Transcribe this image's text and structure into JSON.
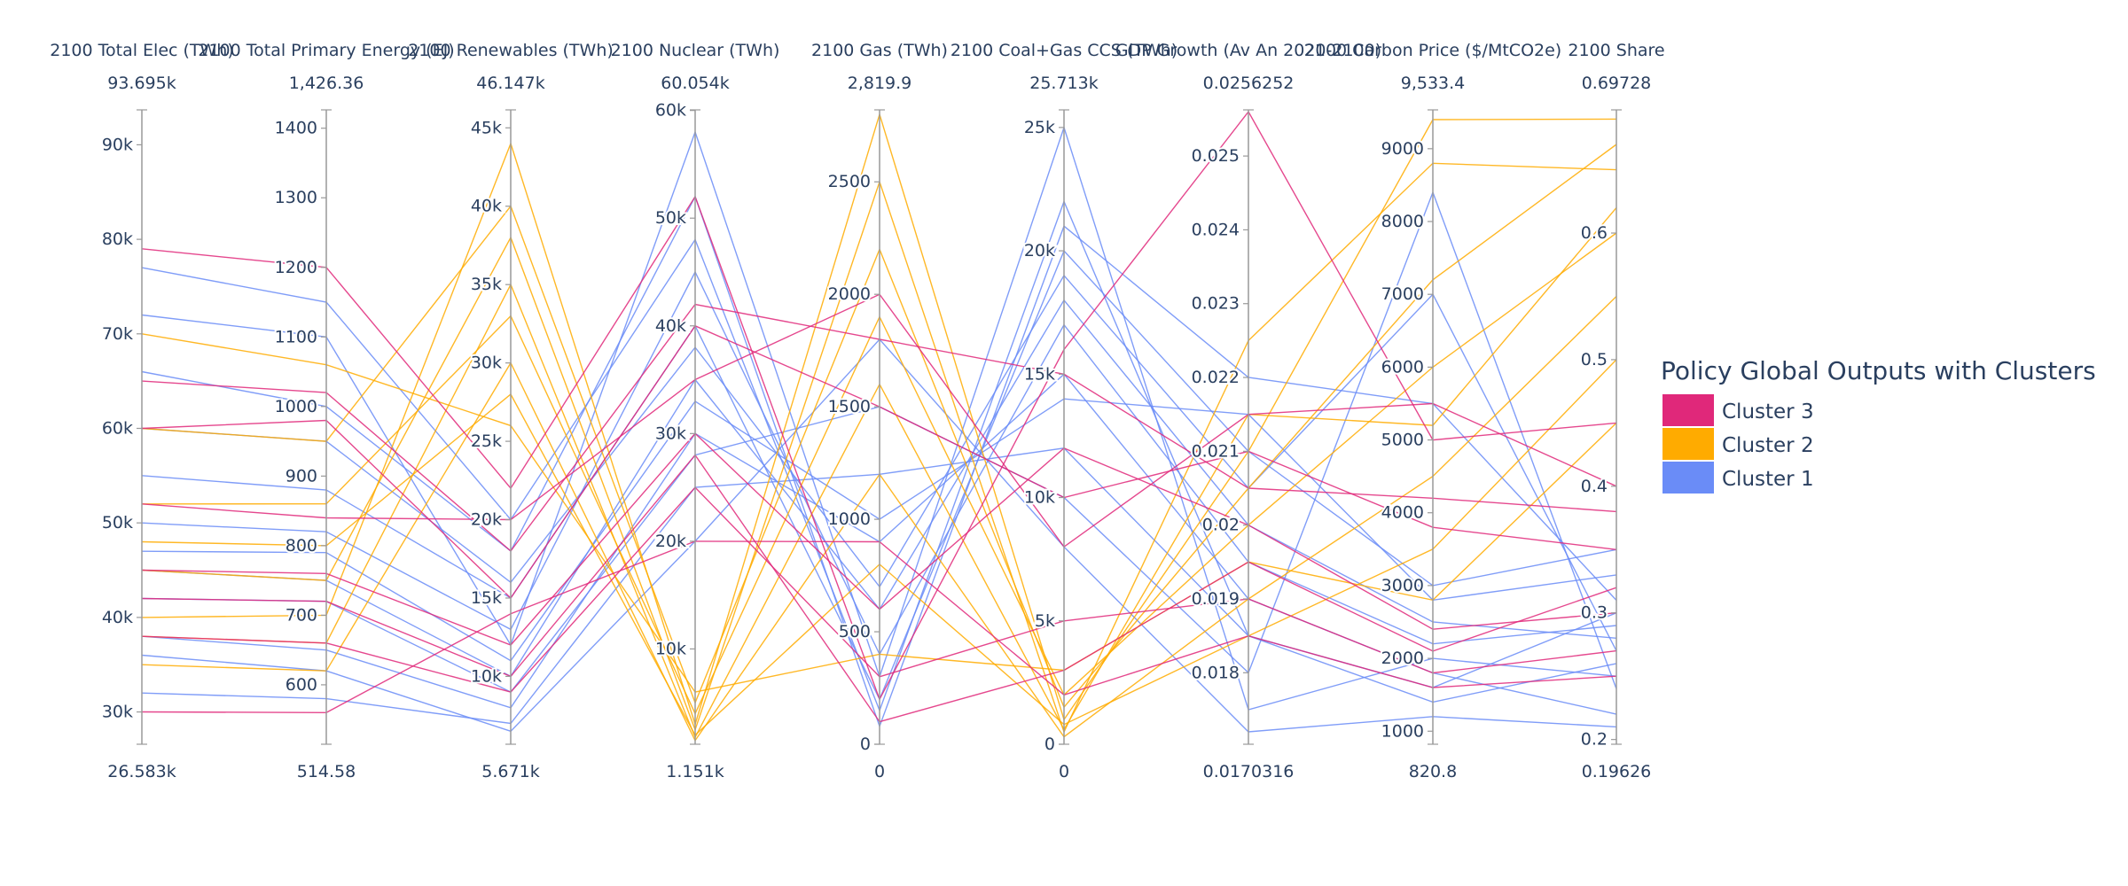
{
  "chart_data": {
    "type": "parallel_coordinates",
    "legend": {
      "title": "Policy Global Outputs with Clusters",
      "placement": "right",
      "entries": [
        {
          "name": "Cluster 3",
          "color": "#e0287a"
        },
        {
          "name": "Cluster 2",
          "color": "#ffab00"
        },
        {
          "name": "Cluster 1",
          "color": "#6a8cf7"
        }
      ]
    },
    "dimensions": [
      {
        "label": "2100 Total Elec (TWh)",
        "min_label": "26.583k",
        "max_label": "93.695k",
        "range": [
          26583,
          93695
        ],
        "ticks": [
          {
            "v": 30000,
            "t": "30k"
          },
          {
            "v": 40000,
            "t": "40k"
          },
          {
            "v": 50000,
            "t": "50k"
          },
          {
            "v": 60000,
            "t": "60k"
          },
          {
            "v": 70000,
            "t": "70k"
          },
          {
            "v": 80000,
            "t": "80k"
          },
          {
            "v": 90000,
            "t": "90k"
          }
        ]
      },
      {
        "label": "2100 Total Primary Energy (EJ)",
        "min_label": "514.58",
        "max_label": "1,426.36",
        "range": [
          514.58,
          1426.36
        ],
        "ticks": [
          {
            "v": 600,
            "t": "600"
          },
          {
            "v": 700,
            "t": "700"
          },
          {
            "v": 800,
            "t": "800"
          },
          {
            "v": 900,
            "t": "900"
          },
          {
            "v": 1000,
            "t": "1000"
          },
          {
            "v": 1100,
            "t": "1100"
          },
          {
            "v": 1200,
            "t": "1200"
          },
          {
            "v": 1300,
            "t": "1300"
          },
          {
            "v": 1400,
            "t": "1400"
          }
        ]
      },
      {
        "label": "2100 Renewables (TWh)",
        "min_label": "5.671k",
        "max_label": "46.147k",
        "range": [
          5671,
          46147
        ],
        "ticks": [
          {
            "v": 10000,
            "t": "10k"
          },
          {
            "v": 15000,
            "t": "15k"
          },
          {
            "v": 20000,
            "t": "20k"
          },
          {
            "v": 25000,
            "t": "25k"
          },
          {
            "v": 30000,
            "t": "30k"
          },
          {
            "v": 35000,
            "t": "35k"
          },
          {
            "v": 40000,
            "t": "40k"
          },
          {
            "v": 45000,
            "t": "45k"
          }
        ]
      },
      {
        "label": "2100 Nuclear (TWh)",
        "min_label": "1.151k",
        "max_label": "60.054k",
        "range": [
          1151,
          60054
        ],
        "ticks": [
          {
            "v": 10000,
            "t": "10k"
          },
          {
            "v": 20000,
            "t": "20k"
          },
          {
            "v": 30000,
            "t": "30k"
          },
          {
            "v": 40000,
            "t": "40k"
          },
          {
            "v": 50000,
            "t": "50k"
          },
          {
            "v": 60000,
            "t": "60k"
          }
        ]
      },
      {
        "label": "2100 Gas (TWh)",
        "min_label": "0",
        "max_label": "2,819.9",
        "range": [
          0,
          2819.9
        ],
        "ticks": [
          {
            "v": 0,
            "t": "0"
          },
          {
            "v": 500,
            "t": "500"
          },
          {
            "v": 1000,
            "t": "1000"
          },
          {
            "v": 1500,
            "t": "1500"
          },
          {
            "v": 2000,
            "t": "2000"
          },
          {
            "v": 2500,
            "t": "2500"
          }
        ]
      },
      {
        "label": "2100 Coal+Gas CCS (TWh)",
        "min_label": "0",
        "max_label": "25.713k",
        "range": [
          0,
          25713
        ],
        "ticks": [
          {
            "v": 0,
            "t": "0"
          },
          {
            "v": 5000,
            "t": "5k"
          },
          {
            "v": 10000,
            "t": "10k"
          },
          {
            "v": 15000,
            "t": "15k"
          },
          {
            "v": 20000,
            "t": "20k"
          },
          {
            "v": 25000,
            "t": "25k"
          }
        ]
      },
      {
        "label": "GDP Growth (Av An 2020-2100)",
        "min_label": "0.0170316",
        "max_label": "0.0256252",
        "range": [
          0.0170316,
          0.0256252
        ],
        "ticks": [
          {
            "v": 0.018,
            "t": "0.018"
          },
          {
            "v": 0.019,
            "t": "0.019"
          },
          {
            "v": 0.02,
            "t": "0.02"
          },
          {
            "v": 0.021,
            "t": "0.021"
          },
          {
            "v": 0.022,
            "t": "0.022"
          },
          {
            "v": 0.023,
            "t": "0.023"
          },
          {
            "v": 0.024,
            "t": "0.024"
          },
          {
            "v": 0.025,
            "t": "0.025"
          }
        ]
      },
      {
        "label": "2100 Carbon Price ($/MtCO2e)",
        "min_label": "820.8",
        "max_label": "9,533.4",
        "range": [
          820.8,
          9533.4
        ],
        "ticks": [
          {
            "v": 1000,
            "t": "1000"
          },
          {
            "v": 2000,
            "t": "2000"
          },
          {
            "v": 3000,
            "t": "3000"
          },
          {
            "v": 4000,
            "t": "4000"
          },
          {
            "v": 5000,
            "t": "5000"
          },
          {
            "v": 6000,
            "t": "6000"
          },
          {
            "v": 7000,
            "t": "7000"
          },
          {
            "v": 8000,
            "t": "8000"
          },
          {
            "v": 9000,
            "t": "9000"
          }
        ]
      },
      {
        "label": "2100 Share",
        "min_label": "0.19626",
        "max_label": "0.69728",
        "range": [
          0.19626,
          0.69728
        ],
        "ticks": [
          {
            "v": 0.2,
            "t": "0.2"
          },
          {
            "v": 0.3,
            "t": "0.3"
          },
          {
            "v": 0.4,
            "t": "0.4"
          },
          {
            "v": 0.5,
            "t": "0.5"
          },
          {
            "v": 0.6,
            "t": "0.6"
          }
        ]
      }
    ],
    "series": [
      {
        "cluster": "Cluster 1",
        "color": "#6a8cf7",
        "lines": [
          [
            72000,
            1100,
            12000,
            58000,
            300,
            25000,
            0.0175,
            2000,
            0.25
          ],
          [
            77000,
            1150,
            20000,
            48000,
            150,
            22000,
            0.0185,
            1600,
            0.3
          ],
          [
            45000,
            750,
            10000,
            35000,
            600,
            18000,
            0.02,
            2500,
            0.28
          ],
          [
            38000,
            650,
            8000,
            30000,
            900,
            15000,
            0.019,
            1800,
            0.22
          ],
          [
            55000,
            880,
            15000,
            40000,
            200,
            20000,
            0.021,
            3000,
            0.35
          ],
          [
            32000,
            580,
            7000,
            25000,
            1200,
            12000,
            0.0185,
            1400,
            0.26
          ],
          [
            66000,
            1000,
            18000,
            52000,
            80,
            21000,
            0.022,
            5500,
            0.31
          ],
          [
            42000,
            720,
            9000,
            28000,
            1500,
            10000,
            0.018,
            8400,
            0.24
          ],
          [
            50000,
            820,
            13000,
            45000,
            400,
            17000,
            0.0195,
            2200,
            0.29
          ],
          [
            36000,
            620,
            6500,
            20000,
            1800,
            8000,
            0.0172,
            1200,
            0.21
          ],
          [
            60000,
            950,
            16000,
            38000,
            700,
            19000,
            0.0205,
            7000,
            0.27
          ],
          [
            47000,
            790,
            11000,
            33000,
            1000,
            14000,
            0.0215,
            2800,
            0.33
          ]
        ]
      },
      {
        "cluster": "Cluster 2",
        "color": "#ffab00",
        "lines": [
          [
            40000,
            700,
            44000,
            3000,
            2800,
            1000,
            0.021,
            9400,
            0.69
          ],
          [
            45000,
            750,
            38000,
            2500,
            2500,
            500,
            0.0225,
            8800,
            0.65
          ],
          [
            52000,
            860,
            33000,
            4000,
            1900,
            2000,
            0.02,
            6000,
            0.6
          ],
          [
            35000,
            620,
            30000,
            1500,
            1200,
            300,
            0.019,
            4500,
            0.55
          ],
          [
            60000,
            950,
            40000,
            5000,
            2200,
            1500,
            0.0205,
            7200,
            0.67
          ],
          [
            48000,
            800,
            28000,
            2000,
            800,
            800,
            0.0185,
            3500,
            0.5
          ],
          [
            38000,
            660,
            35000,
            1800,
            1600,
            600,
            0.0215,
            5200,
            0.62
          ],
          [
            70000,
            1060,
            26000,
            6000,
            400,
            3000,
            0.0195,
            2800,
            0.45
          ]
        ]
      },
      {
        "cluster": "Cluster 3",
        "color": "#e0287a",
        "lines": [
          [
            79000,
            1200,
            22000,
            52000,
            200,
            16000,
            0.0256,
            5000,
            0.45
          ],
          [
            60000,
            980,
            15000,
            40000,
            1500,
            10000,
            0.021,
            3800,
            0.35
          ],
          [
            45000,
            760,
            12000,
            30000,
            600,
            12000,
            0.02,
            2400,
            0.3
          ],
          [
            52000,
            840,
            20000,
            35000,
            2000,
            8000,
            0.0215,
            5500,
            0.4
          ],
          [
            38000,
            660,
            9000,
            25000,
            300,
            5000,
            0.019,
            1800,
            0.27
          ],
          [
            65000,
            1020,
            18000,
            42000,
            1800,
            15000,
            0.0205,
            4200,
            0.38
          ],
          [
            42000,
            720,
            10000,
            28000,
            100,
            3000,
            0.0195,
            2100,
            0.32
          ],
          [
            30000,
            560,
            14000,
            20000,
            900,
            2000,
            0.0185,
            1600,
            0.25
          ]
        ]
      }
    ]
  }
}
